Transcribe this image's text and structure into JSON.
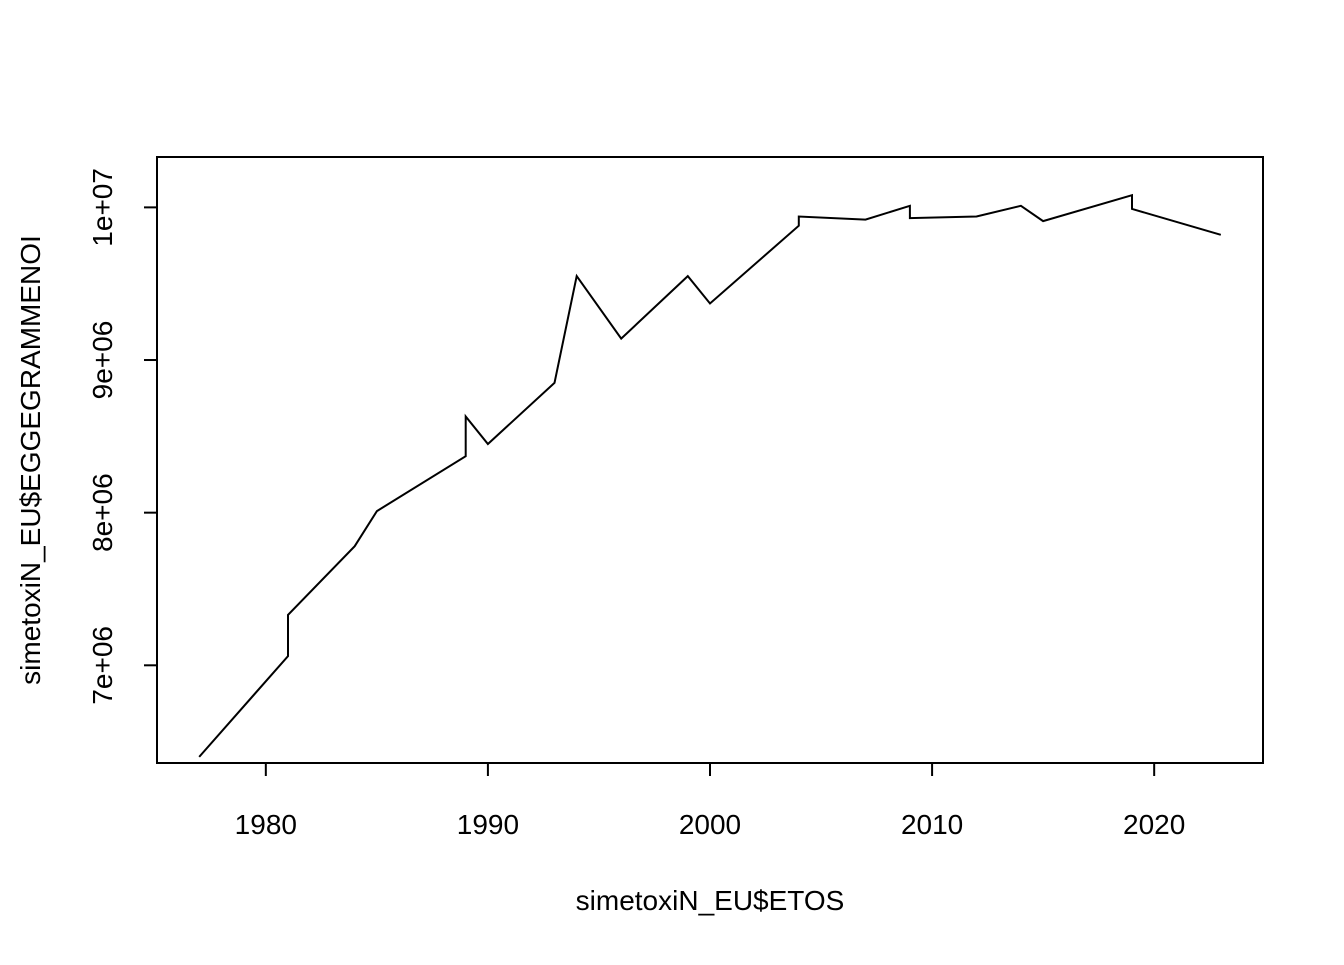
{
  "chart_data": {
    "type": "line",
    "title": "",
    "xlabel": "simetoxiN_EU$ETOS",
    "ylabel": "simetoxiN_EU$EGGEGRAMMENOI",
    "xlim": [
      1975.1,
      2024.9
    ],
    "ylim": [
      6360000,
      10330000
    ],
    "x_ticks": [
      1980,
      1990,
      2000,
      2010,
      2020
    ],
    "x_tick_labels": [
      "1980",
      "1990",
      "2000",
      "2010",
      "2020"
    ],
    "y_ticks": [
      7000000,
      8000000,
      9000000,
      10000000
    ],
    "y_tick_labels": [
      "7e+06",
      "8e+06",
      "9e+06",
      "1e+07"
    ],
    "grid": false,
    "legend": "none",
    "line_color": "#000000",
    "series": [
      {
        "x": [
          1977,
          1981,
          1981,
          1984,
          1985,
          1989,
          1989,
          1990,
          1993,
          1994,
          1996,
          1999,
          2000,
          2004,
          2004,
          2007,
          2009,
          2009,
          2012,
          2014,
          2015,
          2019,
          2019,
          2023
        ],
        "y": [
          6400000,
          7060000,
          7330000,
          7780000,
          8010000,
          8370000,
          8630000,
          8450000,
          8850000,
          9550000,
          9140000,
          9550000,
          9370000,
          9880000,
          9940000,
          9920000,
          10010000,
          9930000,
          9940000,
          10010000,
          9910000,
          10080000,
          9990000,
          9820000
        ]
      }
    ]
  }
}
